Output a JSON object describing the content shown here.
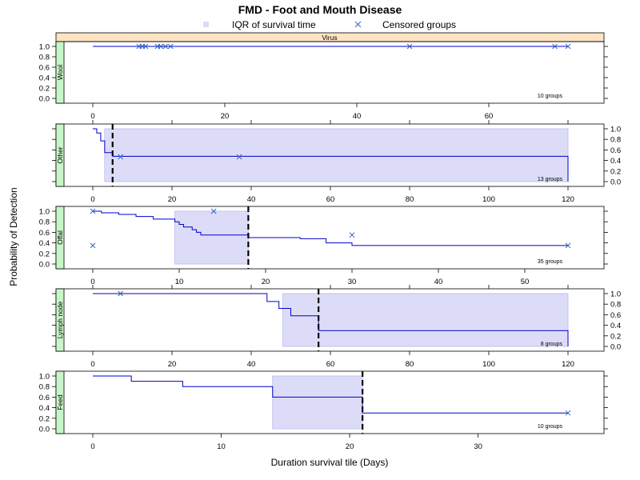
{
  "chart_data": {
    "type": "step",
    "title": "FMD - Foot and Mouth Disease",
    "legend": {
      "iqr_label": "IQR of survival time",
      "censored_label": "Censored groups",
      "position": "top"
    },
    "strip_label": "Virus",
    "xlabel": "Duration survival tile (Days)",
    "ylabel": "Probability of Detection",
    "colors": {
      "line": "#0000cc",
      "iqr_fill": "#dcdcf8",
      "iqr_edge": "#b8b8ee",
      "censored": "#3366bb",
      "median": "#000000",
      "strip_virus": "#ffe4c4",
      "strip_panel": "#c8f5c8"
    },
    "panels": [
      {
        "name": "Wool",
        "groups_label": "10 groups",
        "xlim": [
          0,
          70
        ],
        "xticks": [
          0,
          20,
          40,
          60
        ],
        "xaxis_side": "bottom",
        "yaxis_side": "left",
        "ylim": [
          0,
          1
        ],
        "yticks": [
          0.0,
          0.2,
          0.4,
          0.6,
          0.8,
          1.0
        ],
        "steps": [
          [
            0,
            1.0
          ],
          [
            72,
            1.0
          ]
        ],
        "iqr": null,
        "median": null,
        "censored": [
          [
            7,
            1.0
          ],
          [
            7.5,
            1.0
          ],
          [
            8,
            1.0
          ],
          [
            9.8,
            1.0
          ],
          [
            10.3,
            1.0
          ],
          [
            11,
            1.0
          ],
          [
            11.8,
            1.0
          ],
          [
            48,
            1.0
          ],
          [
            70,
            1.0
          ],
          [
            72,
            1.0
          ]
        ]
      },
      {
        "name": "Other",
        "groups_label": "13 groups",
        "xlim": [
          0,
          120
        ],
        "xticks": [
          0,
          20,
          40,
          60,
          80,
          100,
          120
        ],
        "xaxis_side": "top",
        "yaxis_side": "right",
        "ylim": [
          0,
          1
        ],
        "yticks": [
          0.0,
          0.2,
          0.4,
          0.6,
          0.8,
          1.0
        ],
        "steps": [
          [
            0,
            1.0
          ],
          [
            1,
            0.92
          ],
          [
            2,
            0.77
          ],
          [
            3,
            0.55
          ],
          [
            5,
            0.48
          ],
          [
            120,
            0.48
          ],
          [
            120,
            0.0
          ]
        ],
        "iqr": [
          3,
          120
        ],
        "median": 5,
        "censored": [
          [
            7,
            0.47
          ],
          [
            37,
            0.47
          ]
        ]
      },
      {
        "name": "Offal",
        "groups_label": "35 groups",
        "xlim": [
          0,
          55
        ],
        "xticks": [
          0,
          10,
          20,
          30,
          40,
          50
        ],
        "xaxis_side": "bottom",
        "yaxis_side": "left",
        "ylim": [
          0,
          1
        ],
        "yticks": [
          0.0,
          0.2,
          0.4,
          0.6,
          0.8,
          1.0
        ],
        "steps": [
          [
            0,
            1.0
          ],
          [
            1,
            0.97
          ],
          [
            3,
            0.94
          ],
          [
            5,
            0.9
          ],
          [
            7,
            0.85
          ],
          [
            9.5,
            0.8
          ],
          [
            10,
            0.75
          ],
          [
            10.5,
            0.7
          ],
          [
            11.5,
            0.65
          ],
          [
            12,
            0.6
          ],
          [
            12.5,
            0.55
          ],
          [
            18,
            0.5
          ],
          [
            24,
            0.48
          ],
          [
            27,
            0.4
          ],
          [
            30,
            0.35
          ],
          [
            55,
            0.35
          ]
        ],
        "iqr": [
          9.5,
          18
        ],
        "median": 18,
        "censored": [
          [
            0,
            1.0
          ],
          [
            0,
            0.35
          ],
          [
            14,
            1.0
          ],
          [
            30,
            0.55
          ],
          [
            55,
            0.35
          ]
        ]
      },
      {
        "name": "Lymph node",
        "groups_label": "8 groups",
        "xlim": [
          0,
          120
        ],
        "xticks": [
          0,
          20,
          40,
          60,
          80,
          100,
          120
        ],
        "xaxis_side": "top",
        "yaxis_side": "right",
        "ylim": [
          0,
          1
        ],
        "yticks": [
          0.0,
          0.2,
          0.4,
          0.6,
          0.8,
          1.0
        ],
        "steps": [
          [
            0,
            1.0
          ],
          [
            44,
            0.85
          ],
          [
            47,
            0.72
          ],
          [
            50,
            0.58
          ],
          [
            57,
            0.3
          ],
          [
            120,
            0.3
          ],
          [
            120,
            0.0
          ]
        ],
        "iqr": [
          48,
          120
        ],
        "median": 57,
        "censored": [
          [
            7,
            1.0
          ]
        ]
      },
      {
        "name": "Feed",
        "groups_label": "10 groups",
        "xlim": [
          0,
          36
        ],
        "xticks": [
          0,
          10,
          20,
          30
        ],
        "xaxis_side": "bottom",
        "yaxis_side": "left",
        "ylim": [
          0,
          1
        ],
        "yticks": [
          0.0,
          0.2,
          0.4,
          0.6,
          0.8,
          1.0
        ],
        "steps": [
          [
            0,
            1.0
          ],
          [
            3,
            0.9
          ],
          [
            7,
            0.8
          ],
          [
            14,
            0.6
          ],
          [
            21,
            0.3
          ],
          [
            37,
            0.3
          ]
        ],
        "iqr": [
          14,
          21
        ],
        "median": 21,
        "censored": [
          [
            37,
            0.3
          ]
        ]
      }
    ]
  }
}
